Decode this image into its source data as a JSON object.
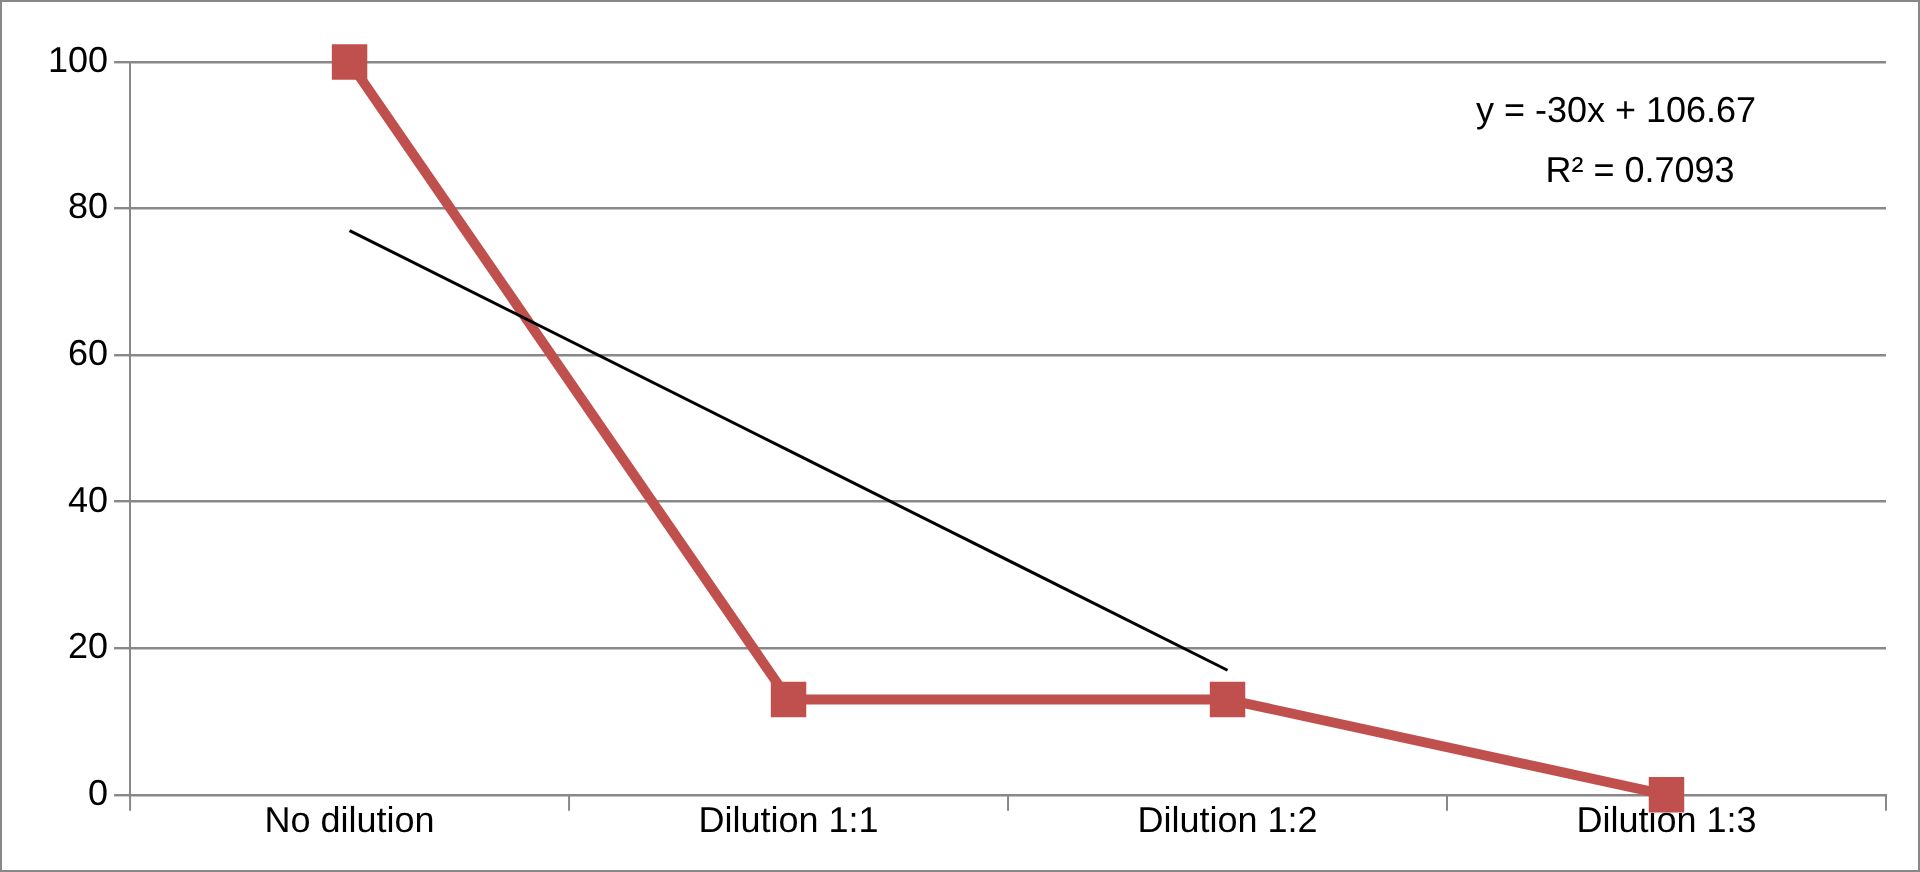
{
  "chart_data": {
    "type": "line",
    "categories": [
      "No dilution",
      "Dilution 1:1",
      "Dilution 1:2",
      "Dilution 1:3"
    ],
    "series": [
      {
        "color": "#c0504d",
        "values": [
          100,
          13,
          13,
          0
        ],
        "marker": "square"
      },
      {
        "type": "line",
        "color": "#000000",
        "values": [
          77,
          47,
          17,
          null
        ],
        "marker": "none"
      }
    ],
    "ylim": [
      0,
      100
    ],
    "yticks": [
      0,
      20,
      40,
      60,
      80,
      100
    ],
    "grid": "y",
    "legend": false,
    "annotations": [
      "y = -30x + 106.67",
      "R² = 0.7093"
    ]
  }
}
